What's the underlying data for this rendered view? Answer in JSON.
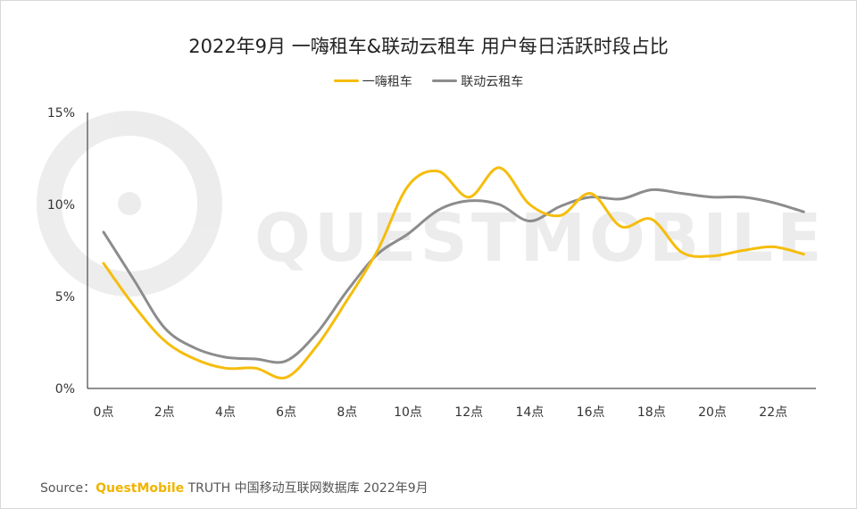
{
  "chart_data": {
    "type": "line",
    "title": "2022年9月 一嗨租车&联动云租车 用户每日活跃时段占比",
    "xlabel": "",
    "ylabel": "",
    "ylim": [
      0,
      15
    ],
    "y_ticks": [
      "0%",
      "5%",
      "10%",
      "15%"
    ],
    "categories": [
      "0点",
      "1点",
      "2点",
      "3点",
      "4点",
      "5点",
      "6点",
      "7点",
      "8点",
      "9点",
      "10点",
      "11点",
      "12点",
      "13点",
      "14点",
      "15点",
      "16点",
      "17点",
      "18点",
      "19点",
      "20点",
      "21点",
      "22点",
      "23点"
    ],
    "x_tick_labels": [
      "0点",
      "2点",
      "4点",
      "6点",
      "8点",
      "10点",
      "12点",
      "14点",
      "16点",
      "18点",
      "20点",
      "22点"
    ],
    "series": [
      {
        "name": "一嗨租车",
        "color": "#f5bd0c",
        "values": [
          6.8,
          4.5,
          2.6,
          1.6,
          1.1,
          1.1,
          0.6,
          2.3,
          4.8,
          7.5,
          11.0,
          11.8,
          10.4,
          12.0,
          10.0,
          9.4,
          10.6,
          8.8,
          9.2,
          7.4,
          7.2,
          7.5,
          7.7,
          7.3
        ]
      },
      {
        "name": "联动云租车",
        "color": "#8c8c8c",
        "values": [
          8.5,
          5.9,
          3.3,
          2.2,
          1.7,
          1.6,
          1.5,
          3.0,
          5.3,
          7.3,
          8.4,
          9.7,
          10.2,
          10.0,
          9.1,
          9.9,
          10.4,
          10.3,
          10.8,
          10.6,
          10.4,
          10.4,
          10.1,
          9.6
        ]
      }
    ],
    "grid": false,
    "legend_position": "top-center"
  },
  "source": {
    "label": "Source：",
    "brand": "QuestMobile",
    "text": " TRUTH 中国移动互联网数据库 2022年9月"
  },
  "watermark": "QUESTMOBILE"
}
